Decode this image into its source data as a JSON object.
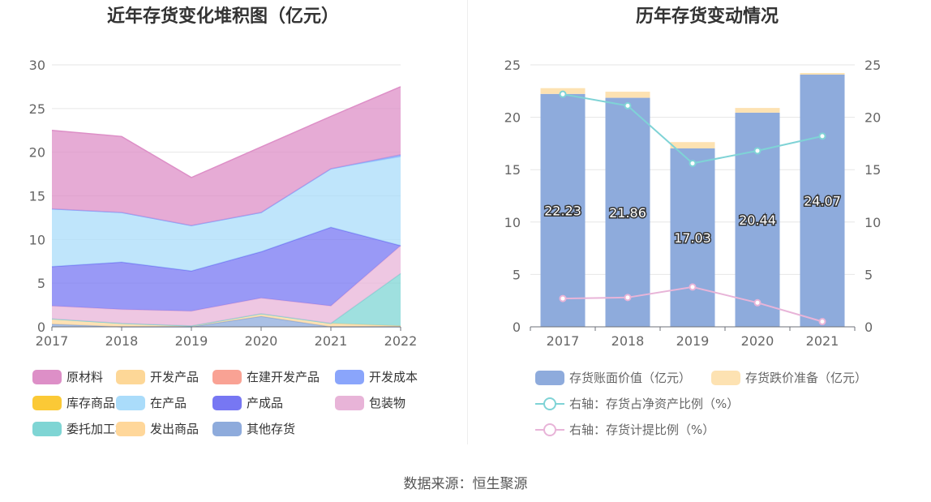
{
  "source": "数据来源：恒生聚源",
  "chart_data": [
    {
      "type": "area",
      "stacked": true,
      "title": "近年存货变化堆积图（亿元）",
      "x": [
        "2017",
        "2018",
        "2019",
        "2020",
        "2021",
        "2022"
      ],
      "ylim": [
        0,
        30
      ],
      "yticks": [
        0,
        5,
        10,
        15,
        20,
        25,
        30
      ],
      "grid": true,
      "legend_position": "bottom",
      "series": [
        {
          "name": "原材料",
          "color": "#dd8fc7",
          "values": [
            9.0,
            8.7,
            5.5,
            7.5,
            6.0,
            7.8
          ]
        },
        {
          "name": "开发产品",
          "color": "#fdd797",
          "values": [
            0,
            0,
            0,
            0,
            0,
            0
          ]
        },
        {
          "name": "在建开发产品",
          "color": "#f9a294",
          "values": [
            0,
            0,
            0,
            0,
            0,
            0
          ]
        },
        {
          "name": "开发成本",
          "color": "#8aa5fb",
          "values": [
            0,
            0,
            0,
            0,
            0,
            0.2
          ]
        },
        {
          "name": "库存商品",
          "color": "#fbc936",
          "values": [
            0,
            0,
            0,
            0,
            0,
            0
          ]
        },
        {
          "name": "在产品",
          "color": "#aadcfa",
          "values": [
            6.6,
            5.7,
            5.2,
            4.5,
            6.7,
            10.2
          ]
        },
        {
          "name": "产成品",
          "color": "#7777f3",
          "values": [
            4.5,
            5.4,
            4.6,
            5.3,
            9.0,
            0
          ]
        },
        {
          "name": "包装物",
          "color": "#e8b4d8",
          "values": [
            1.5,
            1.6,
            1.7,
            1.8,
            2.0,
            3.2
          ]
        },
        {
          "name": "委托加工材料",
          "color": "#7fd5d4",
          "values": [
            0,
            0,
            0,
            0,
            0,
            6.0
          ]
        },
        {
          "name": "发出商品",
          "color": "#ffd79a",
          "values": [
            0.6,
            0.4,
            0.1,
            0.3,
            0.4,
            0.1
          ]
        },
        {
          "name": "其他存货",
          "color": "#8eabdc",
          "values": [
            0.3,
            0,
            0,
            1.2,
            0,
            0
          ]
        }
      ]
    },
    {
      "type": "bar",
      "stacked": true,
      "title": "历年存货变动情况",
      "categories": [
        "2017",
        "2018",
        "2019",
        "2020",
        "2021"
      ],
      "ylim": [
        0,
        25
      ],
      "yticks": [
        0,
        5,
        10,
        15,
        20,
        25
      ],
      "y2lim": [
        0,
        25
      ],
      "y2ticks": [
        0,
        5,
        10,
        15,
        20,
        25
      ],
      "grid": true,
      "legend_position": "bottom",
      "series": [
        {
          "name": "存货账面价值（亿元）",
          "kind": "bar",
          "color": "#8eabdc",
          "values": [
            22.23,
            21.86,
            17.03,
            20.44,
            24.07
          ],
          "labels": [
            "22.23",
            "21.86",
            "17.03",
            "20.44",
            "24.07"
          ]
        },
        {
          "name": "存货跌价准备（亿元）",
          "kind": "bar",
          "color": "#fde2b2",
          "values": [
            0.55,
            0.58,
            0.6,
            0.45,
            0.15
          ]
        },
        {
          "name": "右轴：存货占净资产比例（%）",
          "kind": "line",
          "axis": "right",
          "color": "#7fd3d6",
          "values": [
            22.2,
            21.1,
            15.6,
            16.8,
            18.2
          ]
        },
        {
          "name": "右轴：存货计提比例（%）",
          "kind": "line",
          "axis": "right",
          "color": "#e8b4d8",
          "values": [
            2.7,
            2.8,
            3.8,
            2.3,
            0.5
          ]
        }
      ]
    }
  ]
}
